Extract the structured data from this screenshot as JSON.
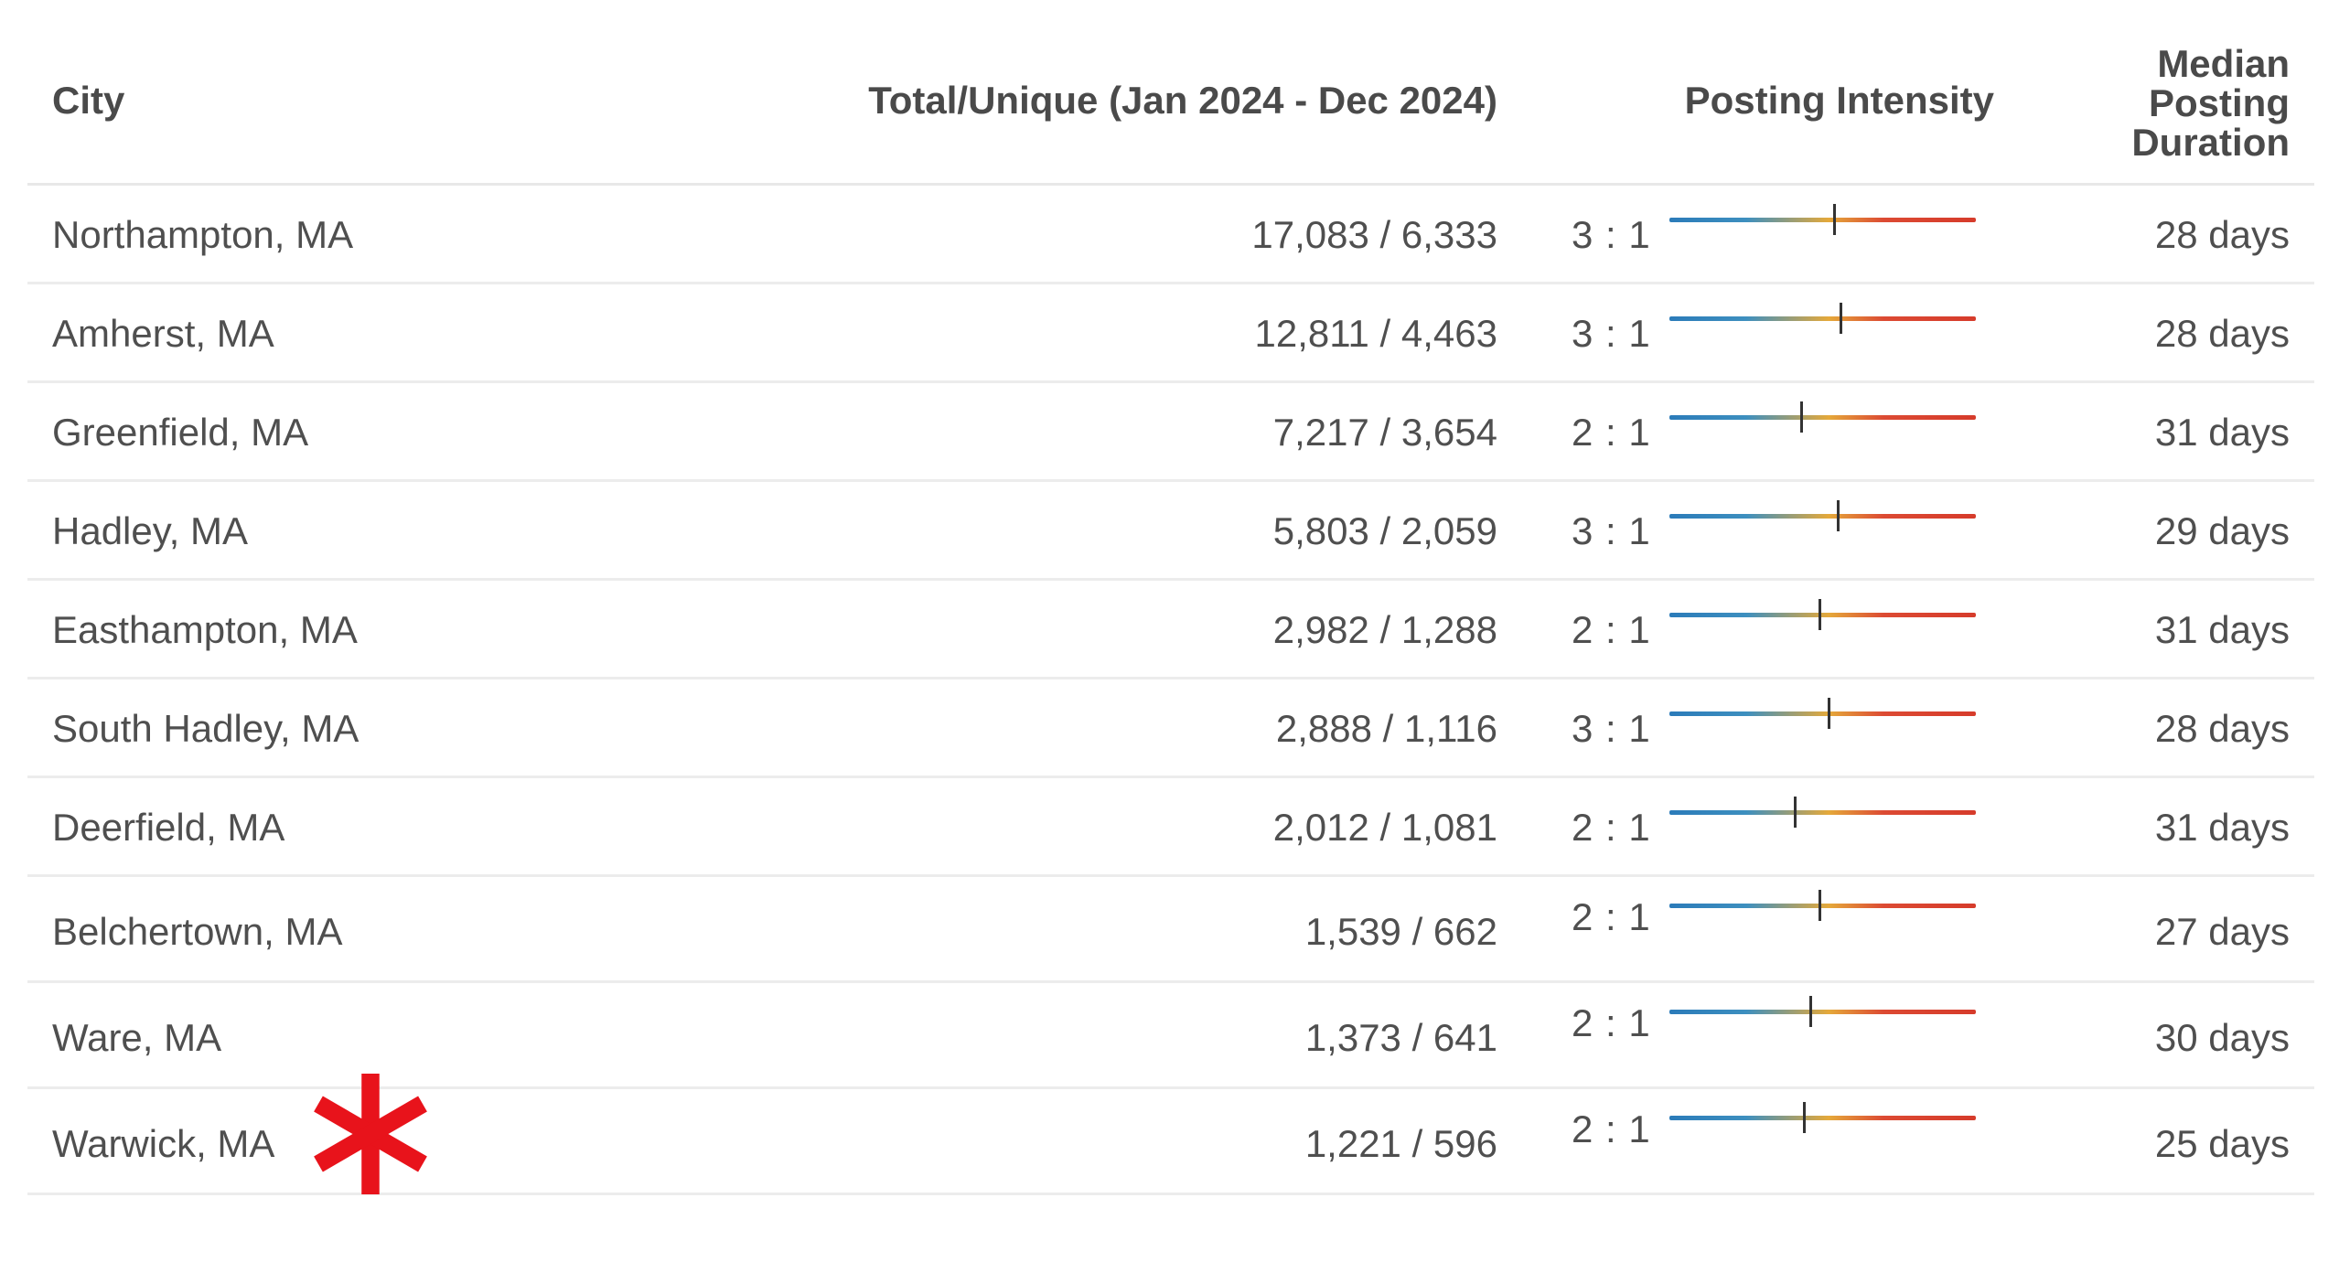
{
  "header": {
    "city": "City",
    "total_unique": "Total/Unique (Jan 2024 - Dec 2024)",
    "posting_intensity": "Posting Intensity",
    "median_posting_duration_lines": [
      "Median",
      "Posting",
      "Duration"
    ]
  },
  "rows": [
    {
      "city": "Northampton, MA",
      "total_unique": "17,083 / 6,333",
      "ratio": "3 : 1",
      "intensity": 0.54,
      "duration": "28 days"
    },
    {
      "city": "Amherst, MA",
      "total_unique": "12,811 / 4,463",
      "ratio": "3 : 1",
      "intensity": 0.56,
      "duration": "28 days"
    },
    {
      "city": "Greenfield, MA",
      "total_unique": "7,217 / 3,654",
      "ratio": "2 : 1",
      "intensity": 0.43,
      "duration": "31 days"
    },
    {
      "city": "Hadley, MA",
      "total_unique": "5,803 / 2,059",
      "ratio": "3 : 1",
      "intensity": 0.55,
      "duration": "29 days"
    },
    {
      "city": "Easthampton, MA",
      "total_unique": "2,982 / 1,288",
      "ratio": "2 : 1",
      "intensity": 0.49,
      "duration": "31 days"
    },
    {
      "city": "South Hadley, MA",
      "total_unique": "2,888 / 1,116",
      "ratio": "3 : 1",
      "intensity": 0.52,
      "duration": "28 days"
    },
    {
      "city": "Deerfield, MA",
      "total_unique": "2,012 / 1,081",
      "ratio": "2 : 1",
      "intensity": 0.41,
      "duration": "31 days"
    },
    {
      "city": "Belchertown, MA",
      "total_unique": "1,539 / 662",
      "ratio": "2 : 1",
      "intensity": 0.49,
      "duration": "27 days"
    },
    {
      "city": "Ware, MA",
      "total_unique": "1,373 / 641",
      "ratio": "2 : 1",
      "intensity": 0.46,
      "duration": "30 days"
    },
    {
      "city": "Warwick, MA",
      "total_unique": "1,221 / 596",
      "ratio": "2 : 1",
      "intensity": 0.44,
      "duration": "25 days"
    }
  ],
  "annotation": {
    "marker": "asterisk",
    "color": "#e8131b"
  },
  "colors": {
    "gradient_start": "#2b7bb9",
    "gradient_mid": "#e5a93a",
    "gradient_end": "#d63b2b",
    "text": "#4a4a4a",
    "divider": "#ececec"
  }
}
